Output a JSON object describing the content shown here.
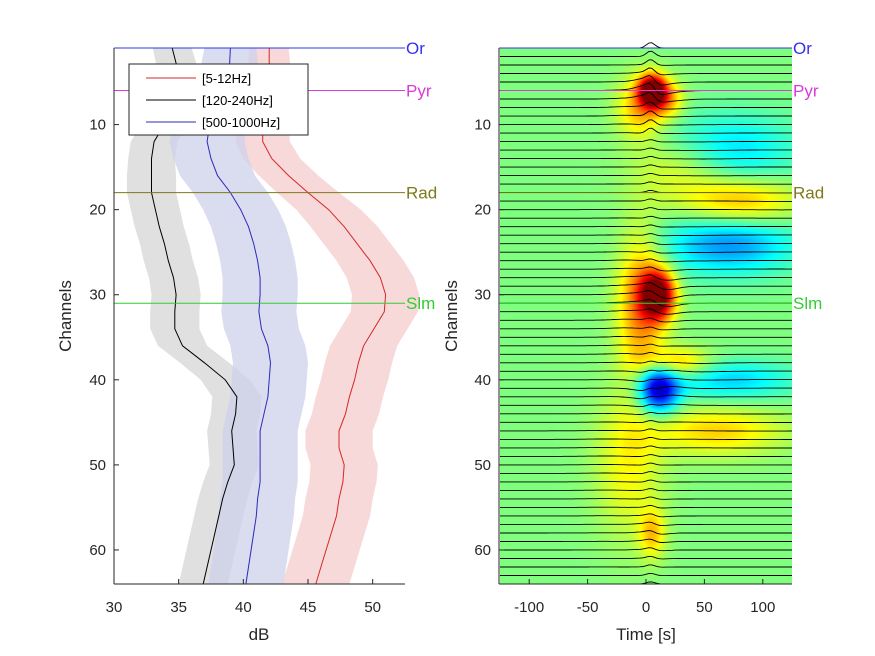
{
  "chart_data": [
    {
      "type": "line",
      "xlabel": "dB",
      "ylabel": "Channels",
      "xlim": [
        30,
        52.5
      ],
      "ylim": [
        1,
        64
      ],
      "y_reversed": true,
      "xticks": [
        "30",
        "35",
        "40",
        "45",
        "50"
      ],
      "yticks": [
        "10",
        "20",
        "30",
        "40",
        "50",
        "60"
      ],
      "legend": {
        "placement": "top-left",
        "entries": [
          "[5-12Hz]",
          "[120-240Hz]",
          "[500-1000Hz]"
        ]
      },
      "series": [
        {
          "name": "[5-12Hz]",
          "color": "#d62728",
          "band_color": "#f4cccc",
          "y": [
            1,
            4,
            8,
            10,
            12,
            14,
            16,
            18,
            20,
            22,
            24,
            26,
            28,
            30,
            32,
            34,
            36,
            38,
            40,
            42,
            44,
            46,
            48,
            50,
            52,
            54,
            56,
            58,
            60,
            62,
            64
          ],
          "x": [
            42.0,
            42.0,
            41.8,
            41.5,
            41.5,
            42.2,
            43.5,
            45.0,
            46.6,
            47.8,
            48.8,
            49.8,
            50.6,
            51.0,
            50.9,
            50.1,
            49.3,
            48.9,
            48.6,
            48.2,
            47.9,
            47.4,
            47.4,
            47.8,
            47.7,
            47.4,
            47.2,
            46.8,
            46.4,
            46.0,
            45.6
          ],
          "band": [
            1.5,
            1.7,
            1.8,
            2.0,
            2.1,
            2.2,
            2.3,
            2.4,
            2.5,
            2.6,
            2.6,
            2.6,
            2.6,
            2.6,
            2.6,
            2.6,
            2.6,
            2.6,
            2.6,
            2.6,
            2.6,
            2.6,
            2.6,
            2.6,
            2.6,
            2.6,
            2.6,
            2.6,
            2.6,
            2.6,
            2.6
          ]
        },
        {
          "name": "[120-240Hz]",
          "color": "#000000",
          "band_color": "#d6d6d6",
          "y": [
            1,
            4,
            8,
            10,
            12,
            14,
            16,
            18,
            20,
            22,
            24,
            26,
            28,
            30,
            32,
            34,
            36,
            38,
            40,
            42,
            44,
            46,
            48,
            50,
            52,
            54,
            56,
            58,
            60,
            62,
            64
          ],
          "x": [
            34.5,
            35.0,
            34.6,
            33.9,
            33.1,
            32.9,
            32.9,
            32.9,
            33.2,
            33.5,
            33.9,
            34.2,
            34.6,
            34.8,
            34.7,
            34.7,
            35.3,
            37.0,
            38.6,
            39.5,
            39.4,
            39.1,
            39.2,
            39.3,
            38.8,
            38.4,
            38.1,
            37.8,
            37.5,
            37.2,
            36.9
          ],
          "band": [
            1.5,
            1.6,
            1.7,
            1.8,
            1.8,
            1.8,
            1.9,
            1.9,
            1.9,
            1.9,
            1.9,
            1.9,
            1.9,
            1.9,
            1.9,
            1.9,
            1.9,
            1.9,
            1.9,
            1.9,
            1.9,
            1.9,
            1.9,
            1.9,
            1.9,
            1.9,
            1.9,
            1.9,
            1.9,
            1.9,
            1.9
          ]
        },
        {
          "name": "[500-1000Hz]",
          "color": "#2b2bb8",
          "band_color": "#cdd0ea",
          "y": [
            1,
            4,
            8,
            10,
            12,
            14,
            16,
            18,
            20,
            22,
            24,
            26,
            28,
            30,
            32,
            34,
            36,
            38,
            40,
            42,
            44,
            46,
            48,
            50,
            52,
            54,
            56,
            58,
            60,
            62,
            64
          ],
          "x": [
            39.0,
            38.9,
            38.3,
            37.4,
            37.2,
            37.5,
            38.0,
            39.0,
            39.8,
            40.4,
            40.8,
            41.1,
            41.3,
            41.3,
            41.2,
            41.4,
            41.9,
            42.1,
            42.0,
            41.9,
            41.6,
            41.3,
            41.3,
            41.3,
            41.3,
            41.1,
            41.0,
            40.8,
            40.6,
            40.4,
            40.2
          ],
          "band": [
            2.0,
            2.3,
            2.6,
            2.8,
            2.9,
            2.9,
            2.9,
            2.9,
            2.9,
            2.9,
            2.9,
            2.9,
            2.9,
            2.9,
            2.9,
            2.9,
            2.9,
            2.9,
            2.9,
            2.9,
            2.9,
            2.9,
            2.9,
            2.9,
            2.9,
            2.9,
            2.9,
            2.9,
            2.9,
            2.9,
            2.9
          ]
        }
      ],
      "annotations": [
        {
          "label": "Or",
          "channel": 1,
          "color": "#3333ee"
        },
        {
          "label": "Pyr",
          "channel": 6,
          "color": "#d93ad9"
        },
        {
          "label": "Rad",
          "channel": 18,
          "color": "#7d7a1a"
        },
        {
          "label": "Slm",
          "channel": 31,
          "color": "#33cc33"
        }
      ]
    },
    {
      "type": "heatmap",
      "xlabel": "Time [s]",
      "ylabel": "Channels",
      "xlim": [
        -125,
        125
      ],
      "ylim": [
        1,
        64
      ],
      "y_reversed": true,
      "xticks": [
        "-100",
        "-50",
        "0",
        "50",
        "100"
      ],
      "yticks": [
        "10",
        "20",
        "30",
        "40",
        "50",
        "60"
      ],
      "num_traces": 64,
      "colormap": "jet",
      "blobs": [
        {
          "t": 5,
          "ch": 6,
          "sd_t": 8,
          "sd_ch": 1.3,
          "amp": 1.4
        },
        {
          "t": -5,
          "ch": 8,
          "sd_t": 14,
          "sd_ch": 2.5,
          "amp": 0.5
        },
        {
          "t": 18,
          "ch": 7,
          "sd_t": 10,
          "sd_ch": 1.5,
          "amp": 0.45
        },
        {
          "t": 70,
          "ch": 13,
          "sd_t": 40,
          "sd_ch": 3,
          "amp": -0.4
        },
        {
          "t": 30,
          "ch": 15,
          "sd_t": 30,
          "sd_ch": 2.5,
          "amp": 0.3
        },
        {
          "t": 80,
          "ch": 19,
          "sd_t": 35,
          "sd_ch": 2,
          "amp": 0.5
        },
        {
          "t": 70,
          "ch": 24,
          "sd_t": 40,
          "sd_ch": 2.5,
          "amp": -0.55
        },
        {
          "t": 10,
          "ch": 30,
          "sd_t": 10,
          "sd_ch": 2,
          "amp": 1.3
        },
        {
          "t": -5,
          "ch": 31,
          "sd_t": 14,
          "sd_ch": 6,
          "amp": 0.6
        },
        {
          "t": 25,
          "ch": 38,
          "sd_t": 20,
          "sd_ch": 1.3,
          "amp": 0.5
        },
        {
          "t": 70,
          "ch": 40,
          "sd_t": 40,
          "sd_ch": 1.6,
          "amp": -0.4
        },
        {
          "t": 10,
          "ch": 41,
          "sd_t": 12,
          "sd_ch": 2,
          "amp": -1.1
        },
        {
          "t": 60,
          "ch": 46,
          "sd_t": 40,
          "sd_ch": 2,
          "amp": 0.4
        },
        {
          "t": -15,
          "ch": 50,
          "sd_t": 20,
          "sd_ch": 6,
          "amp": 0.3
        },
        {
          "t": 5,
          "ch": 58,
          "sd_t": 8,
          "sd_ch": 2,
          "amp": 0.4
        }
      ],
      "annotations": [
        {
          "label": "Or",
          "channel": 1,
          "color": "#3333ee"
        },
        {
          "label": "Pyr",
          "channel": 6,
          "color": "#d93ad9"
        },
        {
          "label": "Rad",
          "channel": 18,
          "color": "#7d7a1a"
        },
        {
          "label": "Slm",
          "channel": 31,
          "color": "#33cc33"
        }
      ]
    }
  ]
}
